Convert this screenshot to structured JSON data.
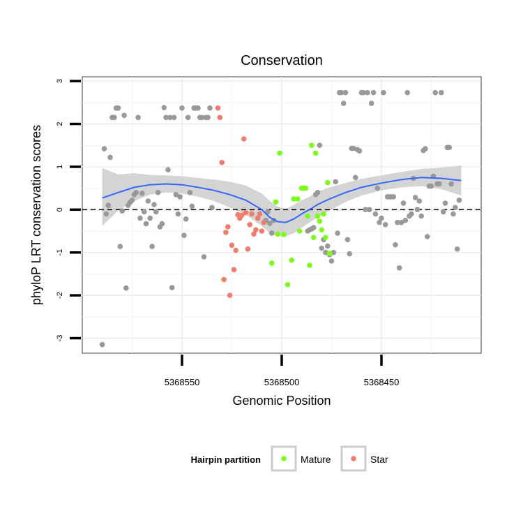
{
  "chart_data": {
    "type": "scatter",
    "title": "Conservation",
    "xlabel": "Genomic Position",
    "ylabel": "phyloP LRT conservation scores",
    "x_reversed": true,
    "xlim": [
      5368600,
      5368400
    ],
    "ylim": [
      -3.35,
      3.1
    ],
    "x_ticks": [
      5368550,
      5368500,
      5368450
    ],
    "x_tick_labels": [
      "5368550",
      "5368500",
      "5368450"
    ],
    "y_ticks": [
      -3,
      -2,
      -1,
      0,
      1,
      2,
      3
    ],
    "y_tick_labels": [
      "-3",
      "-2",
      "-1",
      "0",
      "1",
      "2",
      "3"
    ],
    "grid": true,
    "reference_line": {
      "y": 0,
      "style": "dashed"
    },
    "legend": {
      "title": "Hairpin partition",
      "placement": "bottom",
      "entries": [
        {
          "label": "Mature",
          "color": "#7CFC1C"
        },
        {
          "label": "Star",
          "color": "#F07E6E"
        }
      ]
    },
    "colors": {
      "background_points": "#999999",
      "mature": "#7CFC1C",
      "star": "#F07E6E",
      "smooth_line": "#3366FF",
      "confidence_band": "#CCCCCC"
    },
    "series": [
      {
        "group": "background",
        "x": [
          5368590,
          5368589,
          5368588,
          5368587,
          5368586,
          5368585,
          5368584,
          5368583,
          5368582,
          5368581,
          5368580,
          5368579,
          5368578,
          5368577,
          5368576,
          5368575,
          5368574,
          5368573,
          5368572,
          5368571,
          5368570,
          5368569,
          5368568,
          5368567,
          5368566,
          5368565,
          5368564,
          5368563,
          5368562,
          5368561,
          5368560,
          5368559,
          5368558,
          5368557,
          5368556,
          5368555,
          5368554,
          5368553,
          5368552,
          5368551,
          5368550,
          5368549,
          5368548,
          5368547,
          5368546,
          5368545,
          5368544,
          5368543,
          5368542,
          5368541,
          5368540,
          5368539,
          5368538,
          5368537,
          5368536,
          5368535,
          5368508,
          5368507,
          5368506,
          5368505,
          5368504,
          5368487,
          5368486,
          5368485,
          5368484,
          5368483,
          5368482,
          5368481,
          5368480,
          5368479,
          5368478,
          5368477,
          5368476,
          5368475,
          5368474,
          5368473,
          5368472,
          5368471,
          5368470,
          5368469,
          5368468,
          5368467,
          5368466,
          5368465,
          5368464,
          5368463,
          5368462,
          5368461,
          5368460,
          5368459,
          5368458,
          5368457,
          5368456,
          5368455,
          5368454,
          5368453,
          5368452,
          5368451,
          5368450,
          5368449,
          5368448,
          5368447,
          5368446,
          5368445,
          5368444,
          5368443,
          5368442,
          5368441,
          5368440,
          5368439,
          5368438,
          5368437,
          5368436,
          5368435,
          5368434,
          5368433,
          5368432,
          5368431,
          5368430,
          5368429,
          5368428,
          5368427,
          5368426,
          5368425,
          5368424,
          5368423,
          5368422,
          5368421,
          5368420,
          5368419,
          5368418,
          5368417,
          5368416,
          5368415,
          5368414,
          5368413,
          5368412,
          5368411
        ],
        "y": [
          -3.15,
          1.42,
          -0.1,
          0.1,
          1.22,
          2.15,
          2.15,
          2.37,
          2.37,
          -0.86,
          -0.03,
          2.2,
          -1.83,
          0.1,
          0.17,
          0.22,
          0.35,
          0.4,
          2.15,
          -0.2,
          0.38,
          -0.05,
          -0.33,
          0.2,
          -0.2,
          -0.86,
          0.12,
          -0.05,
          0.4,
          -0.4,
          -0.33,
          2.38,
          2.15,
          0.93,
          2.15,
          -1.82,
          2.15,
          0.35,
          -0.1,
          0.3,
          2.37,
          -0.6,
          -0.22,
          2.15,
          0.4,
          0.08,
          2.37,
          2.37,
          2.37,
          2.15,
          2.15,
          -1.1,
          2.15,
          2.15,
          2.37,
          0.05,
          -0.25,
          -0.05,
          -0.32,
          -0.55,
          -0.25,
          -0.5,
          -0.47,
          -0.45,
          -0.42,
          0.35,
          0.4,
          1.5,
          -0.9,
          -0.7,
          -1.0,
          -0.85,
          -1.05,
          -1.2,
          -1.0,
          0.65,
          -0.55,
          2.73,
          2.73,
          2.48,
          2.73,
          -0.7,
          -1.03,
          1.43,
          1.43,
          0.75,
          1.4,
          1.37,
          2.73,
          2.73,
          0.0,
          2.73,
          0.0,
          2.48,
          2.73,
          -0.1,
          0.5,
          -0.3,
          -0.2,
          2.73,
          -0.35,
          0.3,
          0.3,
          0.3,
          0.3,
          -0.82,
          -0.3,
          -1.36,
          -0.3,
          0.15,
          -0.25,
          2.73,
          -0.15,
          -0.1,
          0.73,
          0.28,
          0.0,
          0.2,
          -0.15,
          1.38,
          1.42,
          -0.63,
          0.55,
          0.55,
          0.78,
          2.73,
          0.6,
          0.6,
          2.73,
          -0.05,
          0.15,
          1.45,
          1.45,
          0.6,
          -0.1,
          0.05,
          -0.92,
          0.22
        ]
      },
      {
        "group": "Mature",
        "x": [
          5368505,
          5368503,
          5368502,
          5368501,
          5368499,
          5368497,
          5368495,
          5368494,
          5368492,
          5368491,
          5368490,
          5368489,
          5368488,
          5368487,
          5368486,
          5368485,
          5368484,
          5368483,
          5368482,
          5368481,
          5368480,
          5368479,
          5368478,
          5368477,
          5368476
        ],
        "y": [
          -1.25,
          0.18,
          -0.57,
          1.32,
          -0.58,
          -1.75,
          -1.18,
          0.25,
          0.25,
          -0.5,
          0.5,
          0.5,
          0.5,
          -0.15,
          -1.3,
          1.5,
          -0.65,
          1.32,
          -0.15,
          -0.27,
          -0.47,
          -0.1,
          -0.65,
          0.63,
          -1.02
        ]
      },
      {
        "group": "Star",
        "x": [
          5368532,
          5368531,
          5368530,
          5368529,
          5368528,
          5368527,
          5368526,
          5368525,
          5368524,
          5368523,
          5368522,
          5368521,
          5368520,
          5368519,
          5368518,
          5368517,
          5368516,
          5368515,
          5368514,
          5368513,
          5368512,
          5368511,
          5368510,
          5368509
        ],
        "y": [
          2.37,
          2.15,
          1.1,
          -1.63,
          -0.53,
          -0.4,
          -2.0,
          -0.83,
          -1.4,
          -0.95,
          -0.12,
          -0.2,
          -0.13,
          1.65,
          -0.07,
          -0.92,
          -0.35,
          -0.1,
          -0.57,
          -0.47,
          -0.2,
          -0.1,
          -0.5,
          -0.3
        ]
      }
    ],
    "smooth": {
      "x": [
        5368590,
        5368582,
        5368574,
        5368566,
        5368558,
        5368550,
        5368542,
        5368534,
        5368526,
        5368518,
        5368510,
        5368506,
        5368502,
        5368498,
        5368494,
        5368490,
        5368486,
        5368482,
        5368476,
        5368468,
        5368460,
        5368450,
        5368440,
        5368430,
        5368420,
        5368410
      ],
      "y": [
        0.27,
        0.4,
        0.52,
        0.58,
        0.6,
        0.58,
        0.52,
        0.45,
        0.35,
        0.22,
        0.0,
        -0.18,
        -0.28,
        -0.3,
        -0.22,
        -0.1,
        0.0,
        0.12,
        0.25,
        0.4,
        0.52,
        0.62,
        0.7,
        0.75,
        0.73,
        0.68
      ],
      "lower": [
        -0.38,
        -0.02,
        0.2,
        0.35,
        0.4,
        0.38,
        0.3,
        0.2,
        0.05,
        -0.12,
        -0.38,
        -0.55,
        -0.62,
        -0.62,
        -0.55,
        -0.42,
        -0.3,
        -0.18,
        -0.02,
        0.18,
        0.33,
        0.45,
        0.52,
        0.55,
        0.48,
        0.33
      ],
      "upper": [
        0.97,
        0.82,
        0.85,
        0.81,
        0.8,
        0.78,
        0.74,
        0.7,
        0.65,
        0.56,
        0.38,
        0.2,
        0.07,
        0.02,
        0.11,
        0.22,
        0.3,
        0.42,
        0.52,
        0.62,
        0.72,
        0.8,
        0.88,
        0.95,
        0.98,
        1.03
      ]
    }
  }
}
